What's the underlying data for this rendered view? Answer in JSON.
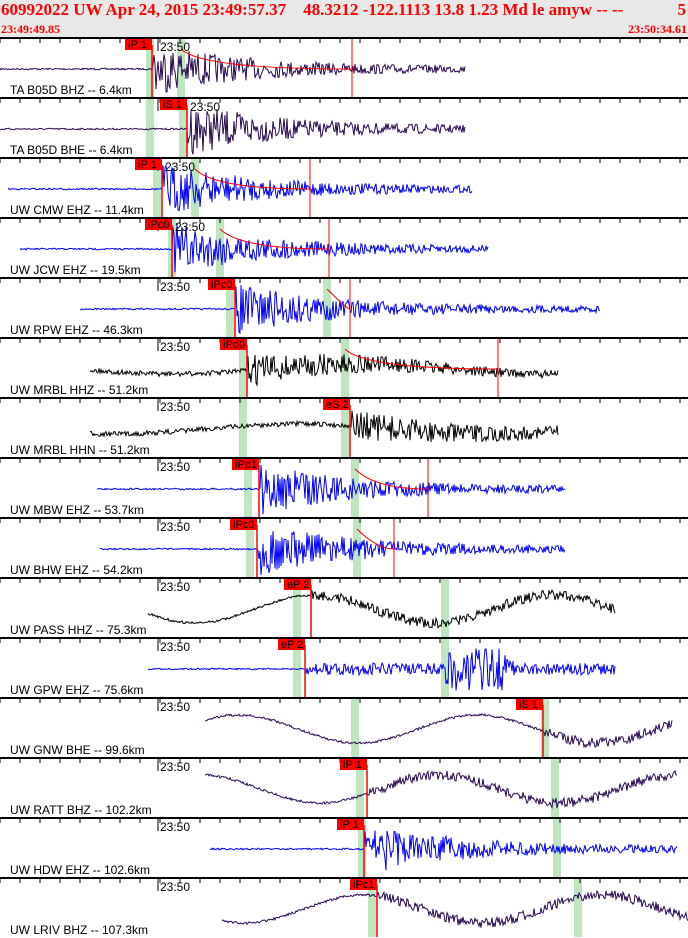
{
  "header": {
    "title": "60992022 UW Apr 24, 2015 23:49:57.37    48.3212 -122.1113 13.8 1.23 Md le amyw -- --",
    "count": "5",
    "start_time": "23:49:49.85",
    "end_time": "23:50:34.61"
  },
  "minute_label": "23:50",
  "colors": {
    "pick": "#ff0000",
    "band": "#bfe5c0",
    "purple": "#2a0a50",
    "blue": "#0000ff",
    "black": "#000000"
  },
  "traces": [
    {
      "station": "TA B05D BHZ -- 6.4km",
      "pick": "iP 1",
      "color": "purple"
    },
    {
      "station": "TA B05D BHE -- 6.4km",
      "pick": "iS 1",
      "color": "purple"
    },
    {
      "station": "UW CMW EHZ -- 11.4km",
      "pick": "iP 1",
      "color": "blue"
    },
    {
      "station": "UW JCW EHZ -- 19.5km",
      "pick": "iPc0",
      "color": "blue"
    },
    {
      "station": "UW RPW EHZ -- 46.3km",
      "pick": "iPc0",
      "color": "blue"
    },
    {
      "station": "UW MRBL HHZ -- 51.2km",
      "pick": "iPd0",
      "color": "black"
    },
    {
      "station": "UW MRBL HHN -- 51.2km",
      "pick": "eS 2",
      "color": "black"
    },
    {
      "station": "UW MBW EHZ -- 53.7km",
      "pick": "iPd1",
      "color": "blue"
    },
    {
      "station": "UW BHW EHZ -- 54.2km",
      "pick": "iPc0",
      "color": "blue"
    },
    {
      "station": "UW PASS HHZ -- 75.3km",
      "pick": "eP 2",
      "color": "black"
    },
    {
      "station": "UW GPW EHZ -- 75.6km",
      "pick": "eP 2",
      "color": "blue"
    },
    {
      "station": "UW GNW BHE -- 99.6km",
      "pick": "iS 1",
      "color": "purple"
    },
    {
      "station": "UW RATT BHZ -- 102.2km",
      "pick": "iP 1",
      "color": "purple"
    },
    {
      "station": "UW HDW EHZ -- 102.6km",
      "pick": "iP 1",
      "color": "blue"
    },
    {
      "station": "UW LRIV BHZ -- 107.3km",
      "pick": "iPc1",
      "color": "purple"
    }
  ]
}
